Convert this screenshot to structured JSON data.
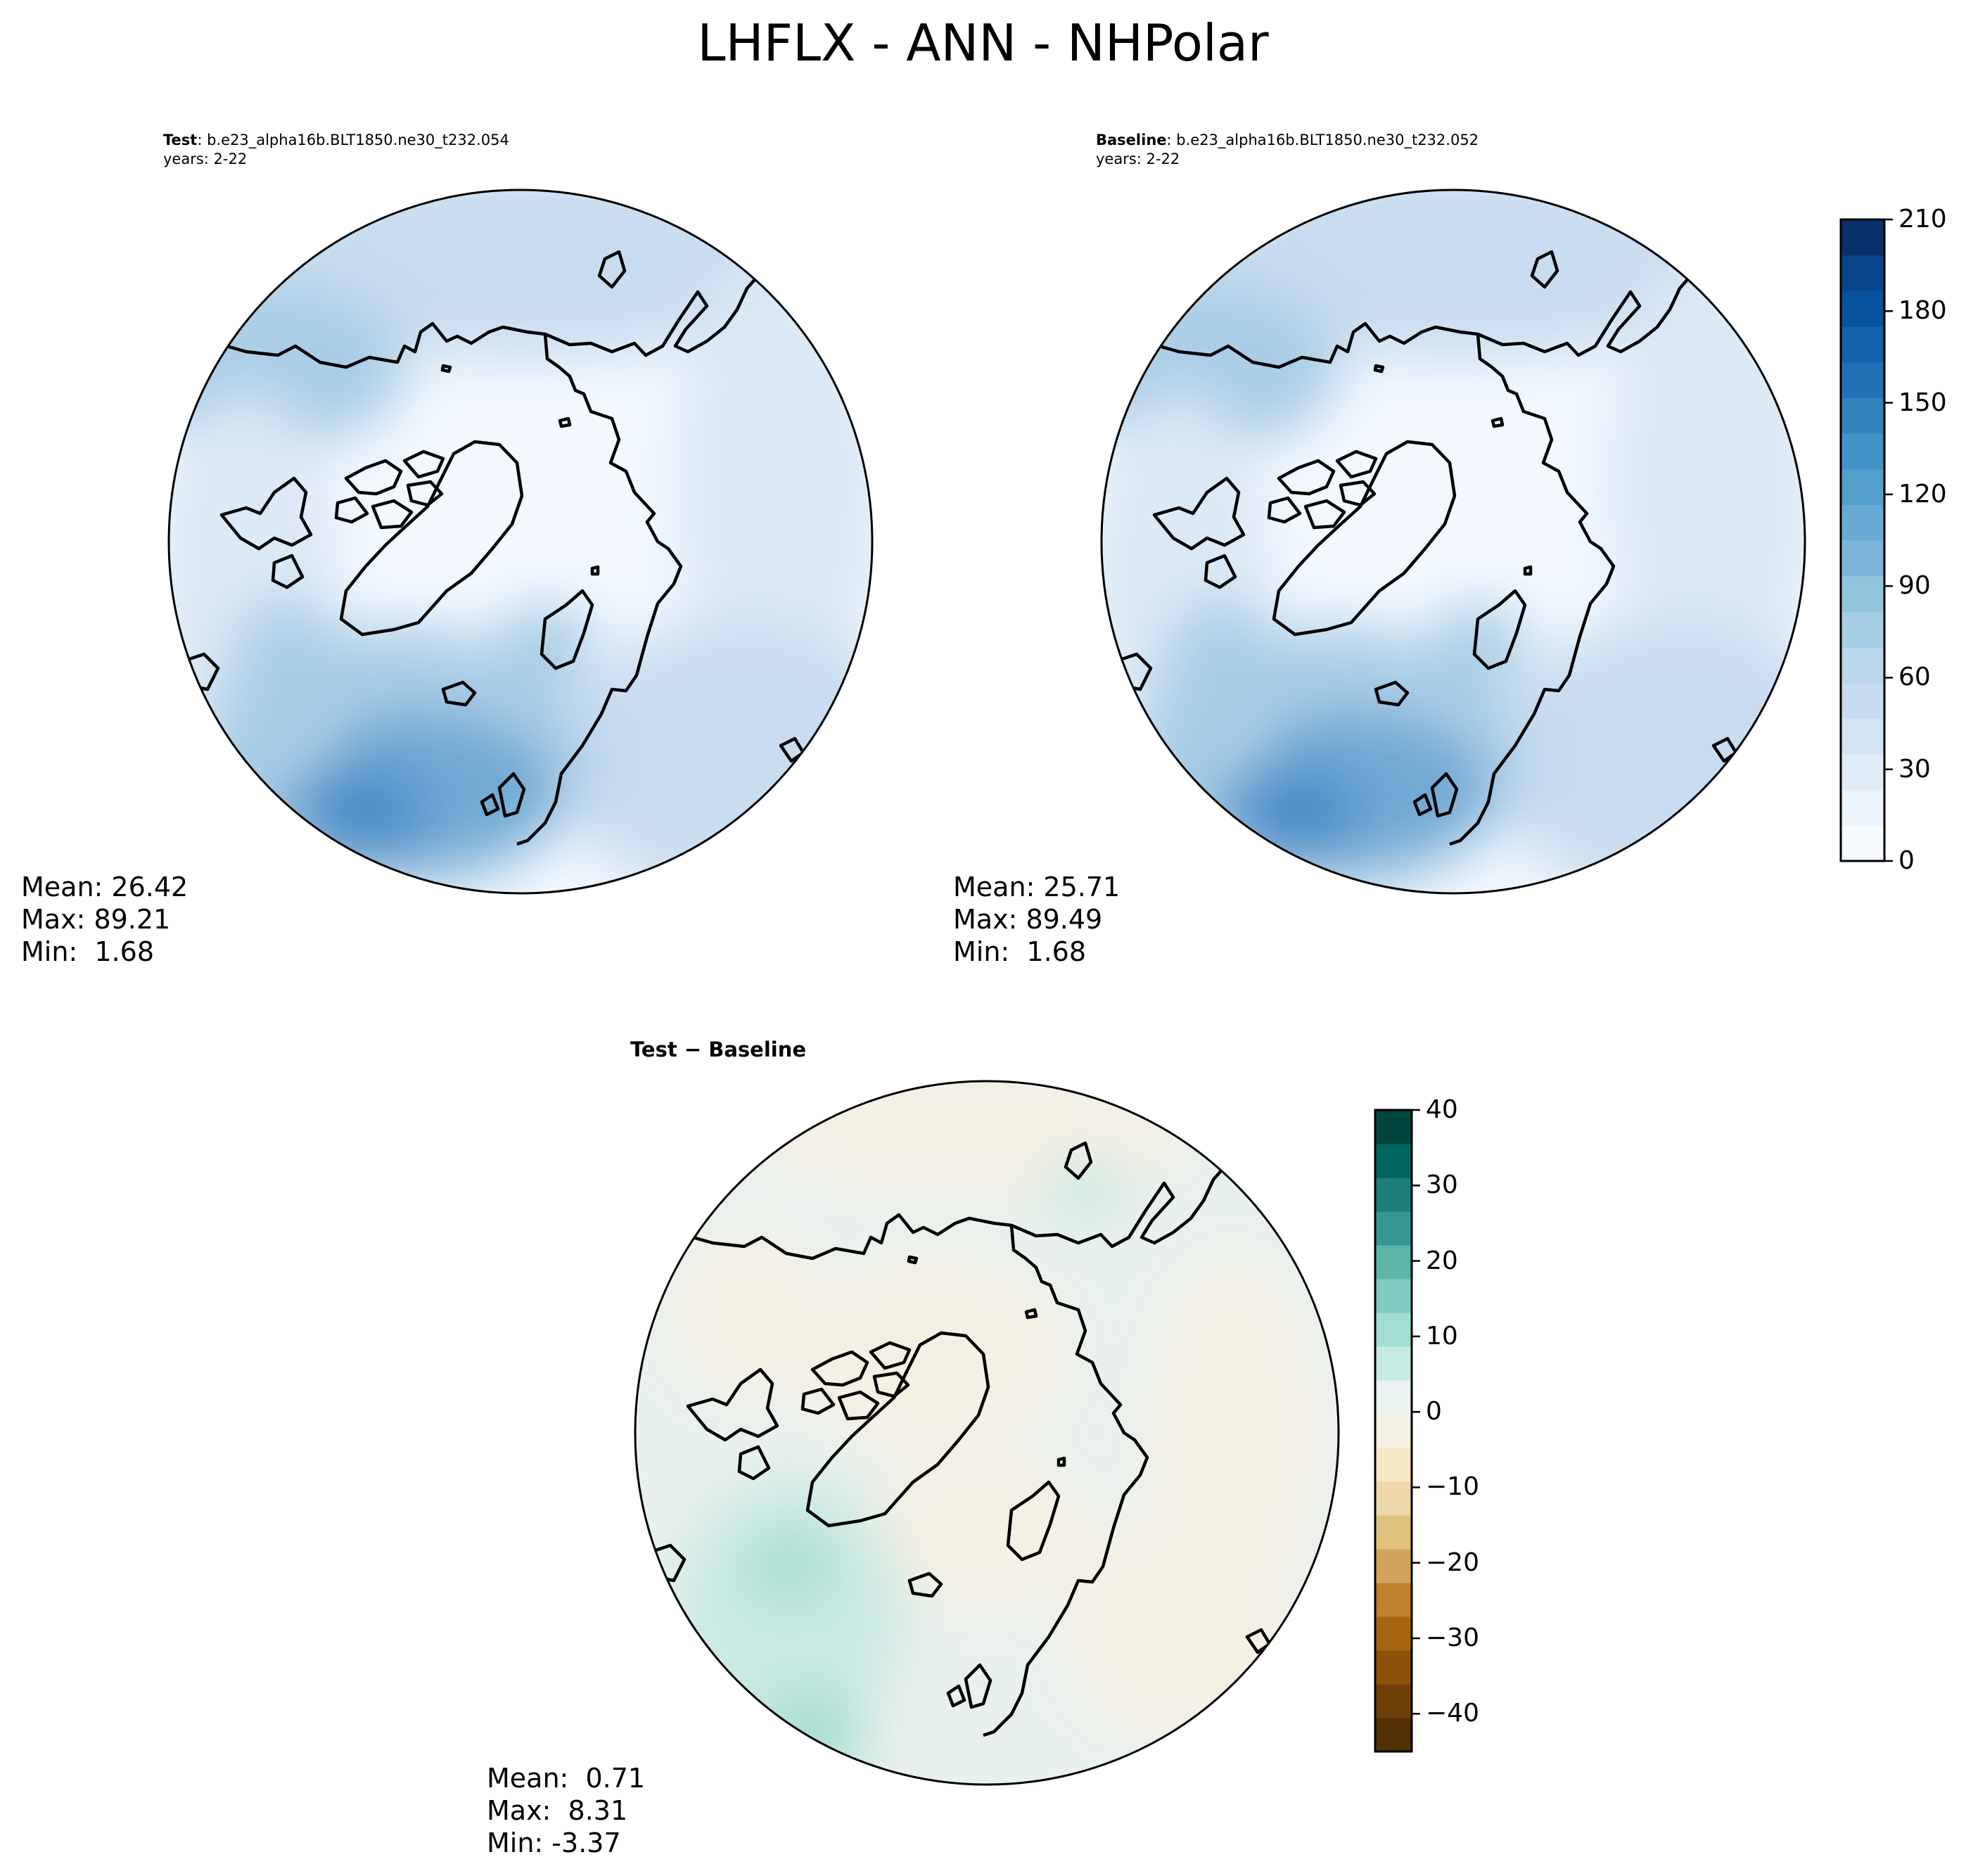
{
  "figure": {
    "title": "LHFLX - ANN - NHPolar"
  },
  "panels": {
    "test": {
      "label_bold": "Test",
      "label_case": ": b.e23_alpha16b.BLT1850.ne30_t232.054",
      "years": "years: 2-22",
      "stats": {
        "mean": "Mean: 26.42",
        "max": "Max: 89.21",
        "min": "Min:  1.68"
      }
    },
    "baseline": {
      "label_bold": "Baseline",
      "label_case": ": b.e23_alpha16b.BLT1850.ne30_t232.052",
      "years": "years: 2-22",
      "stats": {
        "mean": "Mean: 25.71",
        "max": "Max: 89.49",
        "min": "Min:  1.68"
      }
    },
    "difference": {
      "title": "Test − Baseline",
      "stats": {
        "mean": "Mean:  0.71",
        "max": "Max:  8.31",
        "min": "Min: -3.37"
      }
    }
  },
  "colorbars": {
    "absolute": {
      "range": [
        0,
        210
      ],
      "ticks": [
        "0",
        "30",
        "60",
        "90",
        "120",
        "150",
        "180",
        "210"
      ],
      "colors": [
        "#f7fbff",
        "#ebf3fb",
        "#e0ecf8",
        "#d4e4f4",
        "#c7dcef",
        "#b9d6ea",
        "#a6cee4",
        "#92c4de",
        "#7cb7da",
        "#67abd4",
        "#559fcd",
        "#4292c6",
        "#3282be",
        "#2171b5",
        "#1462ab",
        "#08519c",
        "#08458a",
        "#08306b"
      ]
    },
    "difference": {
      "range": [
        -45,
        40
      ],
      "ticks": [
        "40",
        "30",
        "20",
        "10",
        "0",
        "−10",
        "−20",
        "−30",
        "−40"
      ],
      "colors": [
        "#543005",
        "#6f3f08",
        "#8c510a",
        "#a6660f",
        "#bf812d",
        "#d2a35e",
        "#dfc27d",
        "#ecd8a8",
        "#f6e8c3",
        "#f5f0e4",
        "#e9f3f1",
        "#c7eae5",
        "#a3ded3",
        "#80cdc1",
        "#5fb4a8",
        "#35978f",
        "#1d7f76",
        "#01665e",
        "#00463f"
      ]
    }
  },
  "map_shading": {
    "test_colors": [
      "#f2f8fe",
      "#dce9f6",
      "#c9ddf0",
      "#aacde6",
      "#6fa9d4",
      "#4a8ec7"
    ],
    "baseline_colors": [
      "#f2f8fe",
      "#dce9f6",
      "#c9ddf0",
      "#aacde6",
      "#6fa9d4",
      "#4a8ec7"
    ],
    "difference_colors": [
      "#e9f1ee",
      "#f5f0e4",
      "#c9e9e3",
      "#a6ddd2"
    ]
  }
}
